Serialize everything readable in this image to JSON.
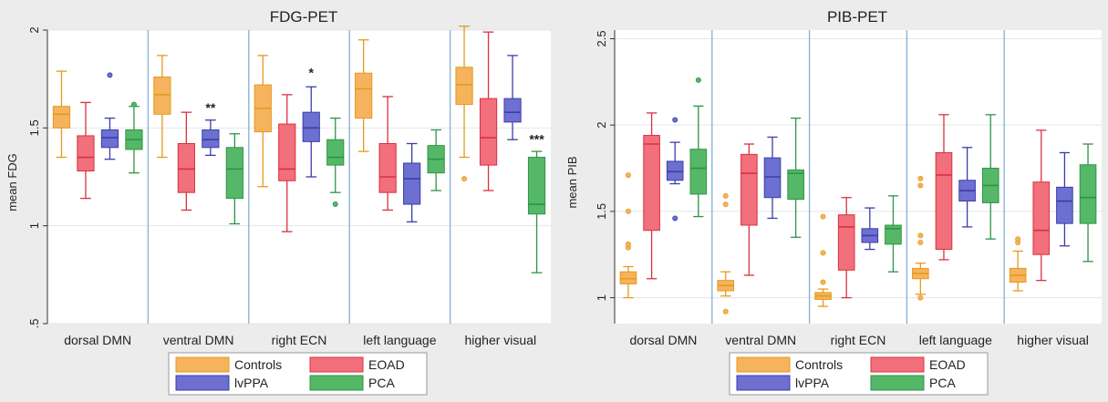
{
  "legend": {
    "entries": [
      {
        "label": "Controls",
        "color": "#f6b35e",
        "stroke": "#e59a1c"
      },
      {
        "label": "EOAD",
        "color": "#f26f7c",
        "stroke": "#d9323f"
      },
      {
        "label": "lvPPA",
        "color": "#6d6fd1",
        "stroke": "#3b3ea8"
      },
      {
        "label": "PCA",
        "color": "#55b868",
        "stroke": "#2e9444"
      }
    ]
  },
  "chart_data": [
    {
      "type": "box",
      "title": "FDG-PET",
      "ylabel": "mean FDG",
      "ylim": [
        0.5,
        2.0
      ],
      "yticks": [
        0.5,
        1.0,
        1.5,
        2.0
      ],
      "ytick_labels": [
        ".5",
        "1",
        "1.5",
        "2"
      ],
      "categories": [
        "dorsal DMN",
        "ventral DMN",
        "right ECN",
        "left language",
        "higher visual"
      ],
      "series_names": [
        "Controls",
        "EOAD",
        "lvPPA",
        "PCA"
      ],
      "boxes": [
        [
          {
            "whisker_low": 1.35,
            "q1": 1.5,
            "median": 1.57,
            "q3": 1.61,
            "whisker_high": 1.79,
            "outliers": []
          },
          {
            "whisker_low": 1.14,
            "q1": 1.28,
            "median": 1.35,
            "q3": 1.46,
            "whisker_high": 1.63,
            "outliers": []
          },
          {
            "whisker_low": 1.34,
            "q1": 1.4,
            "median": 1.45,
            "q3": 1.49,
            "whisker_high": 1.55,
            "outliers": [
              1.77
            ]
          },
          {
            "whisker_low": 1.27,
            "q1": 1.39,
            "median": 1.44,
            "q3": 1.49,
            "whisker_high": 1.61,
            "outliers": [
              1.62
            ]
          }
        ],
        [
          {
            "whisker_low": 1.35,
            "q1": 1.57,
            "median": 1.67,
            "q3": 1.76,
            "whisker_high": 1.87,
            "outliers": []
          },
          {
            "whisker_low": 1.08,
            "q1": 1.17,
            "median": 1.29,
            "q3": 1.42,
            "whisker_high": 1.58,
            "outliers": []
          },
          {
            "whisker_low": 1.36,
            "q1": 1.4,
            "median": 1.44,
            "q3": 1.49,
            "whisker_high": 1.54,
            "outliers": []
          },
          {
            "whisker_low": 1.01,
            "q1": 1.14,
            "median": 1.29,
            "q3": 1.4,
            "whisker_high": 1.47,
            "outliers": []
          }
        ],
        [
          {
            "whisker_low": 1.2,
            "q1": 1.48,
            "median": 1.6,
            "q3": 1.72,
            "whisker_high": 1.87,
            "outliers": []
          },
          {
            "whisker_low": 0.97,
            "q1": 1.23,
            "median": 1.29,
            "q3": 1.52,
            "whisker_high": 1.67,
            "outliers": []
          },
          {
            "whisker_low": 1.25,
            "q1": 1.43,
            "median": 1.5,
            "q3": 1.58,
            "whisker_high": 1.71,
            "outliers": []
          },
          {
            "whisker_low": 1.17,
            "q1": 1.31,
            "median": 1.35,
            "q3": 1.44,
            "whisker_high": 1.55,
            "outliers": [
              1.11
            ]
          }
        ],
        [
          {
            "whisker_low": 1.38,
            "q1": 1.55,
            "median": 1.7,
            "q3": 1.78,
            "whisker_high": 1.95,
            "outliers": []
          },
          {
            "whisker_low": 1.08,
            "q1": 1.17,
            "median": 1.25,
            "q3": 1.42,
            "whisker_high": 1.66,
            "outliers": []
          },
          {
            "whisker_low": 1.02,
            "q1": 1.11,
            "median": 1.24,
            "q3": 1.32,
            "whisker_high": 1.42,
            "outliers": []
          },
          {
            "whisker_low": 1.18,
            "q1": 1.27,
            "median": 1.34,
            "q3": 1.41,
            "whisker_high": 1.49,
            "outliers": []
          }
        ],
        [
          {
            "whisker_low": 1.35,
            "q1": 1.62,
            "median": 1.72,
            "q3": 1.81,
            "whisker_high": 2.02,
            "outliers": [
              1.24
            ]
          },
          {
            "whisker_low": 1.18,
            "q1": 1.31,
            "median": 1.45,
            "q3": 1.65,
            "whisker_high": 1.99,
            "outliers": []
          },
          {
            "whisker_low": 1.44,
            "q1": 1.53,
            "median": 1.58,
            "q3": 1.65,
            "whisker_high": 1.87,
            "outliers": []
          },
          {
            "whisker_low": 0.76,
            "q1": 1.06,
            "median": 1.11,
            "q3": 1.35,
            "whisker_high": 1.38,
            "outliers": []
          }
        ]
      ],
      "annotations": [
        {
          "category": 1,
          "series": 2,
          "y": 1.58,
          "text": "**"
        },
        {
          "category": 2,
          "series": 2,
          "y": 1.76,
          "text": "*"
        },
        {
          "category": 4,
          "series": 3,
          "y": 1.42,
          "text": "***"
        }
      ],
      "grid": true,
      "legend": "bottom"
    },
    {
      "type": "box",
      "title": "PIB-PET",
      "ylabel": "mean PIB",
      "ylim": [
        0.85,
        2.55
      ],
      "yticks": [
        1.0,
        1.5,
        2.0,
        2.5
      ],
      "ytick_labels": [
        "1",
        "1.5",
        "2",
        "2.5"
      ],
      "categories": [
        "dorsal DMN",
        "ventral DMN",
        "right ECN",
        "left language",
        "higher visual"
      ],
      "series_names": [
        "Controls",
        "EOAD",
        "lvPPA",
        "PCA"
      ],
      "boxes": [
        [
          {
            "whisker_low": 1.0,
            "q1": 1.08,
            "median": 1.11,
            "q3": 1.15,
            "whisker_high": 1.18,
            "outliers": [
              1.29,
              1.31,
              1.5,
              1.71
            ]
          },
          {
            "whisker_low": 1.11,
            "q1": 1.39,
            "median": 1.89,
            "q3": 1.94,
            "whisker_high": 2.07,
            "outliers": []
          },
          {
            "whisker_low": 1.66,
            "q1": 1.68,
            "median": 1.73,
            "q3": 1.79,
            "whisker_high": 1.9,
            "outliers": [
              1.46,
              2.03
            ]
          },
          {
            "whisker_low": 1.47,
            "q1": 1.6,
            "median": 1.75,
            "q3": 1.86,
            "whisker_high": 2.11,
            "outliers": [
              2.26
            ]
          }
        ],
        [
          {
            "whisker_low": 1.01,
            "q1": 1.04,
            "median": 1.07,
            "q3": 1.1,
            "whisker_high": 1.15,
            "outliers": [
              0.92,
              1.54,
              1.59
            ]
          },
          {
            "whisker_low": 1.13,
            "q1": 1.42,
            "median": 1.72,
            "q3": 1.83,
            "whisker_high": 1.89,
            "outliers": []
          },
          {
            "whisker_low": 1.46,
            "q1": 1.58,
            "median": 1.7,
            "q3": 1.81,
            "whisker_high": 1.93,
            "outliers": []
          },
          {
            "whisker_low": 1.35,
            "q1": 1.57,
            "median": 1.72,
            "q3": 1.74,
            "whisker_high": 2.04,
            "outliers": []
          }
        ],
        [
          {
            "whisker_low": 0.95,
            "q1": 0.99,
            "median": 1.01,
            "q3": 1.03,
            "whisker_high": 1.05,
            "outliers": [
              1.09,
              1.26,
              1.47
            ]
          },
          {
            "whisker_low": 1.0,
            "q1": 1.16,
            "median": 1.41,
            "q3": 1.48,
            "whisker_high": 1.58,
            "outliers": []
          },
          {
            "whisker_low": 1.28,
            "q1": 1.32,
            "median": 1.36,
            "q3": 1.4,
            "whisker_high": 1.52,
            "outliers": []
          },
          {
            "whisker_low": 1.15,
            "q1": 1.31,
            "median": 1.4,
            "q3": 1.42,
            "whisker_high": 1.59,
            "outliers": []
          }
        ],
        [
          {
            "whisker_low": 1.02,
            "q1": 1.11,
            "median": 1.14,
            "q3": 1.17,
            "whisker_high": 1.2,
            "outliers": [
              1.0,
              1.32,
              1.36,
              1.65,
              1.69
            ]
          },
          {
            "whisker_low": 1.22,
            "q1": 1.28,
            "median": 1.71,
            "q3": 1.84,
            "whisker_high": 2.06,
            "outliers": []
          },
          {
            "whisker_low": 1.41,
            "q1": 1.56,
            "median": 1.62,
            "q3": 1.68,
            "whisker_high": 1.87,
            "outliers": []
          },
          {
            "whisker_low": 1.34,
            "q1": 1.55,
            "median": 1.65,
            "q3": 1.75,
            "whisker_high": 2.06,
            "outliers": []
          }
        ],
        [
          {
            "whisker_low": 1.04,
            "q1": 1.09,
            "median": 1.13,
            "q3": 1.17,
            "whisker_high": 1.27,
            "outliers": [
              1.32,
              1.34
            ]
          },
          {
            "whisker_low": 1.1,
            "q1": 1.25,
            "median": 1.39,
            "q3": 1.67,
            "whisker_high": 1.97,
            "outliers": []
          },
          {
            "whisker_low": 1.3,
            "q1": 1.43,
            "median": 1.56,
            "q3": 1.64,
            "whisker_high": 1.84,
            "outliers": []
          },
          {
            "whisker_low": 1.21,
            "q1": 1.43,
            "median": 1.58,
            "q3": 1.77,
            "whisker_high": 1.89,
            "outliers": []
          }
        ]
      ],
      "annotations": [],
      "grid": true,
      "legend": "bottom"
    }
  ]
}
